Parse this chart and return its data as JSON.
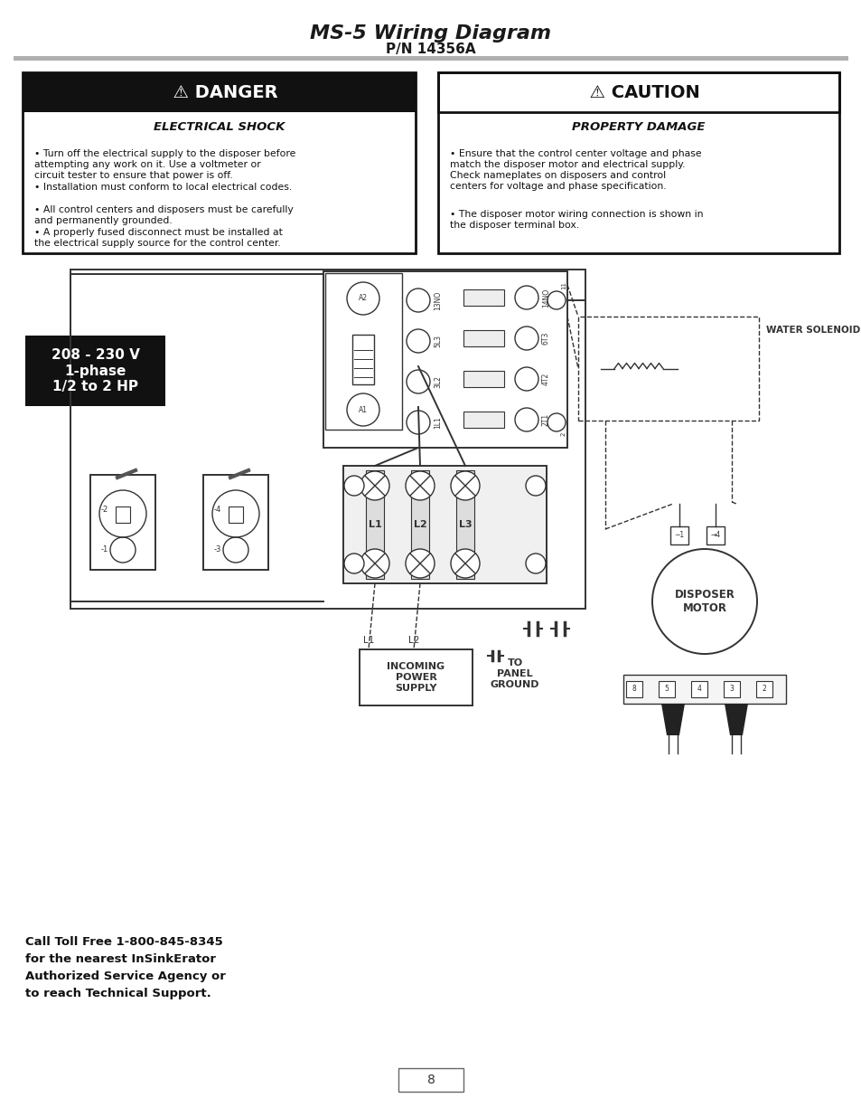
{
  "title": "MS-5 Wiring Diagram",
  "subtitle": "P/N 14356A",
  "background_color": "#ffffff",
  "danger_header": "  ⚠ DANGER",
  "danger_subheader": "ELECTRICAL SHOCK",
  "danger_bullets": [
    "Turn off the electrical supply to the disposer before\nattempting any work on it. Use a voltmeter or\ncircuit tester to ensure that power is off.",
    "Installation must conform to local electrical codes.",
    "All control centers and disposers must be carefully\nand permanently grounded.",
    "A properly fused disconnect must be installed at\nthe electrical supply source for the control center."
  ],
  "caution_header": "  ⚠ CAUTION",
  "caution_subheader": "PROPERTY DAMAGE",
  "caution_bullets": [
    "Ensure that the control center voltage and phase\nmatch the disposer motor and electrical supply.\nCheck nameplates on disposers and control\ncenters for voltage and phase specification.",
    "The disposer motor wiring connection is shown in\nthe disposer terminal box."
  ],
  "voltage_label": "208 - 230 V\n1-phase\n1/2 to 2 HP",
  "incoming_label": "INCOMING\nPOWER\nSUPPLY",
  "panel_ground_label": "TO\nPANEL\nGROUND",
  "water_solenoid_label": "WATER SOLENOID VALVE",
  "disposer_motor_label": "DISPOSER\nMOTOR",
  "footer_text": "Call Toll Free 1-800-845-8345\nfor the nearest InSinkErator\nAuthorized Service Agency or\nto reach Technical Support.",
  "page_number": "8",
  "lc": "#333333",
  "lw": 1.4
}
